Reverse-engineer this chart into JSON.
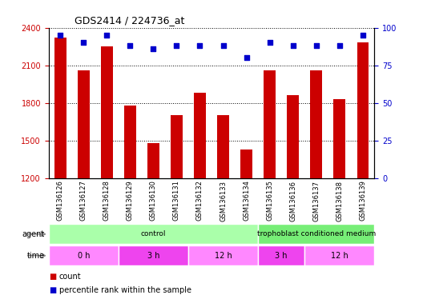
{
  "title": "GDS2414 / 224736_at",
  "samples": [
    "GSM136126",
    "GSM136127",
    "GSM136128",
    "GSM136129",
    "GSM136130",
    "GSM136131",
    "GSM136132",
    "GSM136133",
    "GSM136134",
    "GSM136135",
    "GSM136136",
    "GSM136137",
    "GSM136138",
    "GSM136139"
  ],
  "counts": [
    2320,
    2060,
    2250,
    1780,
    1480,
    1700,
    1880,
    1700,
    1430,
    2060,
    1860,
    2060,
    1830,
    2280
  ],
  "percentile_ranks": [
    95,
    90,
    95,
    88,
    86,
    88,
    88,
    88,
    80,
    90,
    88,
    88,
    88,
    95
  ],
  "ylim_left": [
    1200,
    2400
  ],
  "ylim_right": [
    0,
    100
  ],
  "yticks_left": [
    1200,
    1500,
    1800,
    2100,
    2400
  ],
  "yticks_right": [
    0,
    25,
    50,
    75,
    100
  ],
  "bar_color": "#cc0000",
  "dot_color": "#0000cc",
  "bar_width": 0.5,
  "agent_groups": [
    {
      "label": "control",
      "start": 0,
      "end": 9,
      "color": "#aaffaa"
    },
    {
      "label": "trophoblast conditioned medium",
      "start": 9,
      "end": 14,
      "color": "#77ee77"
    }
  ],
  "time_groups": [
    {
      "label": "0 h",
      "start": 0,
      "end": 3,
      "color": "#ff88ff"
    },
    {
      "label": "3 h",
      "start": 3,
      "end": 6,
      "color": "#ee44ee"
    },
    {
      "label": "12 h",
      "start": 6,
      "end": 9,
      "color": "#ff88ff"
    },
    {
      "label": "3 h",
      "start": 9,
      "end": 11,
      "color": "#ee44ee"
    },
    {
      "label": "12 h",
      "start": 11,
      "end": 14,
      "color": "#ff88ff"
    }
  ],
  "tick_label_color_left": "#cc0000",
  "tick_label_color_right": "#0000cc",
  "grid_color": "#000000"
}
